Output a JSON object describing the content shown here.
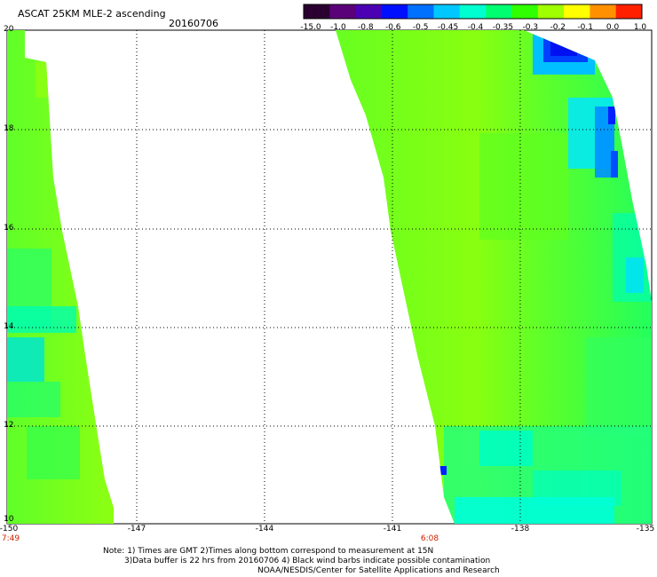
{
  "header": {
    "title": "ASCAT 25KM MLE-2 ascending",
    "date": "20160706"
  },
  "colorbar": {
    "labels": [
      "-15.0",
      "-1.0",
      "-0.8",
      "-0.6",
      "-0.5",
      "-0.45",
      "-0.4",
      "-0.35",
      "-0.3",
      "-0.2",
      "-0.1",
      "0.0",
      "1.0"
    ],
    "colors": [
      "#2a0030",
      "#5a0078",
      "#4b00b4",
      "#0010ff",
      "#0070ff",
      "#00c8ff",
      "#00ffd0",
      "#00ff70",
      "#30ff00",
      "#a0ff00",
      "#ffff00",
      "#ff9000",
      "#ff2000"
    ]
  },
  "axes": {
    "y_labels": [
      "20",
      "18",
      "16",
      "14",
      "12",
      "10"
    ],
    "x_labels": [
      "-150",
      "-147",
      "-144",
      "-141",
      "-138",
      "-135"
    ],
    "time_labels": [
      {
        "text": "7:49",
        "lon": -150
      },
      {
        "text": "6:08",
        "lon": -141
      }
    ]
  },
  "notes": {
    "line1": "Note: 1) Times are GMT 2)Times along bottom correspond to measurement at 15N",
    "line2": "3)Data buffer is 22 hrs from 20160706 4) Black wind barbs indicate possible contamination",
    "line3": "NOAA/NESDIS/Center for Satellite Applications and Research"
  }
}
